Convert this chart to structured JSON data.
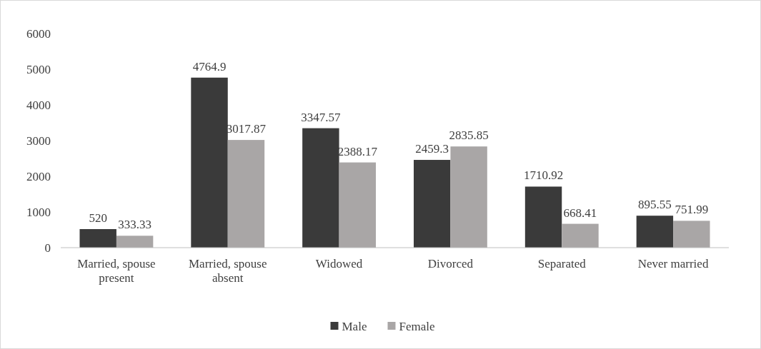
{
  "chart_data": {
    "type": "bar",
    "categories": [
      "Married, spouse present",
      "Married, spouse absent",
      "Widowed",
      "Divorced",
      "Separated",
      "Never married"
    ],
    "series": [
      {
        "name": "Male",
        "color": "#3a3a3a",
        "values": [
          520,
          4764.9,
          3347.57,
          2459.3,
          1710.92,
          895.55
        ]
      },
      {
        "name": "Female",
        "color": "#a9a6a6",
        "values": [
          333.33,
          3017.87,
          2388.17,
          2835.85,
          668.41,
          751.99
        ]
      }
    ],
    "ylim": [
      0,
      6000
    ],
    "yticks": [
      0,
      1000,
      2000,
      3000,
      4000,
      5000,
      6000
    ],
    "grid": false,
    "legend": "bottom",
    "data_labels": true
  }
}
